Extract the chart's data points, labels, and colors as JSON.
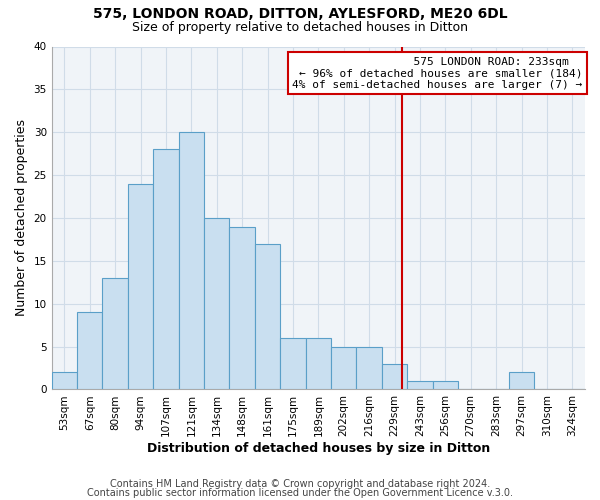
{
  "title": "575, LONDON ROAD, DITTON, AYLESFORD, ME20 6DL",
  "subtitle": "Size of property relative to detached houses in Ditton",
  "xlabel": "Distribution of detached houses by size in Ditton",
  "ylabel": "Number of detached properties",
  "bin_labels": [
    "53sqm",
    "67sqm",
    "80sqm",
    "94sqm",
    "107sqm",
    "121sqm",
    "134sqm",
    "148sqm",
    "161sqm",
    "175sqm",
    "189sqm",
    "202sqm",
    "216sqm",
    "229sqm",
    "243sqm",
    "256sqm",
    "270sqm",
    "283sqm",
    "297sqm",
    "310sqm",
    "324sqm"
  ],
  "bar_heights": [
    2,
    9,
    13,
    24,
    28,
    30,
    20,
    19,
    17,
    6,
    6,
    5,
    5,
    3,
    1,
    1,
    0,
    0,
    2,
    0,
    0
  ],
  "bar_color": "#c9dff0",
  "bar_edge_color": "#5a9fc8",
  "ref_bar_index": 13,
  "ref_sqm": 233,
  "ref_prev_sqm": 229,
  "ref_next_sqm": 243,
  "annotation_title": "575 LONDON ROAD: 233sqm",
  "annotation_line1": "← 96% of detached houses are smaller (184)",
  "annotation_line2": "4% of semi-detached houses are larger (7) →",
  "annotation_box_facecolor": "#ffffff",
  "annotation_box_edgecolor": "#cc0000",
  "ref_line_color": "#cc0000",
  "ylim": [
    0,
    40
  ],
  "yticks": [
    0,
    5,
    10,
    15,
    20,
    25,
    30,
    35,
    40
  ],
  "grid_color": "#d0dce8",
  "title_fontsize": 10,
  "subtitle_fontsize": 9,
  "axis_label_fontsize": 9,
  "tick_fontsize": 7.5,
  "annotation_fontsize": 8,
  "footer_fontsize": 7,
  "footer_line1": "Contains HM Land Registry data © Crown copyright and database right 2024.",
  "footer_line2": "Contains public sector information licensed under the Open Government Licence v.3.0."
}
